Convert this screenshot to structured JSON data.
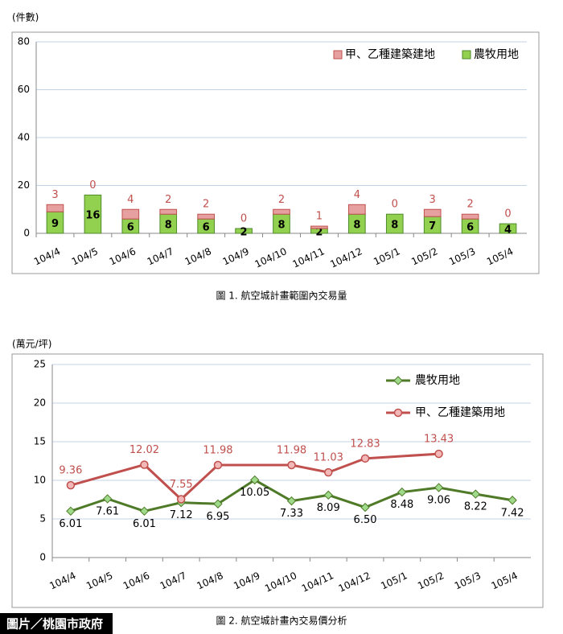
{
  "credit": "圖片／桃園市政府",
  "chart_data": [
    {
      "type": "stacked_bar",
      "y_unit": "(件數)",
      "caption": "圖 1. 航空城計畫範圍內交易量",
      "categories": [
        "104/4",
        "104/5",
        "104/6",
        "104/7",
        "104/8",
        "104/9",
        "104/10",
        "104/11",
        "104/12",
        "105/1",
        "105/2",
        "105/3",
        "105/4"
      ],
      "series": [
        {
          "name": "農牧用地",
          "color": "#92d050",
          "values": [
            9,
            16,
            6,
            8,
            6,
            2,
            8,
            2,
            8,
            8,
            7,
            6,
            4
          ]
        },
        {
          "name": "甲、乙種建築建地",
          "color": "#e6a0a0",
          "values": [
            3,
            0,
            4,
            2,
            2,
            0,
            2,
            1,
            4,
            0,
            3,
            2,
            0
          ]
        }
      ],
      "ylim": [
        0,
        80
      ],
      "yticks": [
        0,
        20,
        40,
        60,
        80
      ],
      "grid": true,
      "legend": "top-right"
    },
    {
      "type": "line",
      "y_unit": "(萬元/坪)",
      "caption": "圖 2. 航空城計畫內交易價分析",
      "categories": [
        "104/4",
        "104/5",
        "104/6",
        "104/7",
        "104/8",
        "104/9",
        "104/10",
        "104/11",
        "104/12",
        "105/1",
        "105/2",
        "105/3",
        "105/4"
      ],
      "series": [
        {
          "name": "農牧用地",
          "color": "#4f7a28",
          "values": [
            6.01,
            7.61,
            6.01,
            7.12,
            6.95,
            10.05,
            7.33,
            8.09,
            6.5,
            8.48,
            9.06,
            8.22,
            7.42
          ],
          "value_labels": [
            "6.01",
            "7.61",
            "6.01",
            "7.12",
            "6.95",
            "10.05",
            "7.33",
            "8.09",
            "6.50",
            "8.48",
            "9.06",
            "8.22",
            "7.42"
          ]
        },
        {
          "name": "甲、乙種建築用地",
          "color": "#c0504d",
          "values": [
            9.36,
            null,
            12.02,
            7.55,
            11.98,
            null,
            11.98,
            11.03,
            12.83,
            null,
            13.43,
            null,
            null
          ]
        }
      ],
      "span_gaps": true,
      "ylim": [
        0,
        25
      ],
      "yticks": [
        0,
        5,
        10,
        15,
        20,
        25
      ],
      "grid": true,
      "legend": "top-right"
    }
  ]
}
